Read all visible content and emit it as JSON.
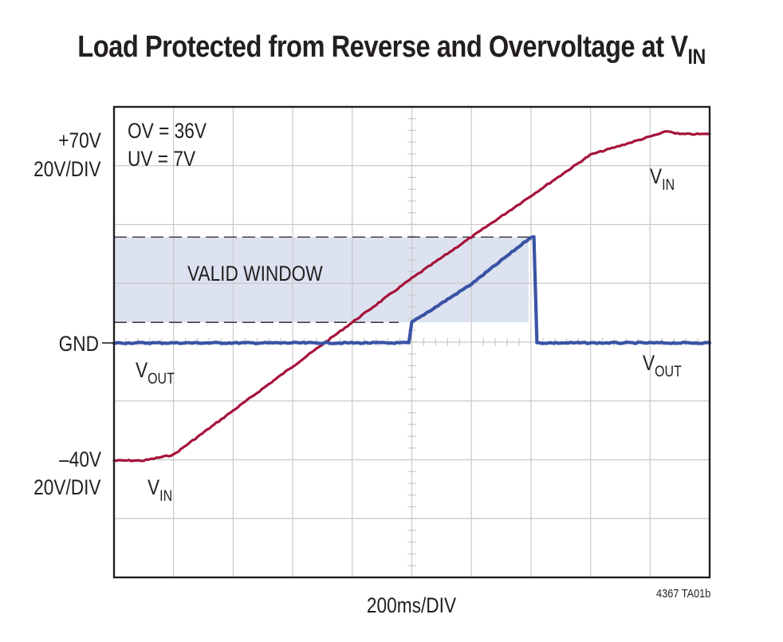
{
  "title": {
    "main": "Load Protected from Reverse and Overvoltage at V",
    "sub": "IN"
  },
  "colors": {
    "vin": "#a6123a",
    "vout": "#3a53a4",
    "window_fill": "#dde2f0",
    "grid": "#c9c9c9",
    "frame": "#231f20"
  },
  "chart_data": {
    "type": "line",
    "title": "Load Protected from Reverse and Overvoltage at VIN",
    "xlabel": "200ms/DIV",
    "x_unit": "ms",
    "xlim": [
      0,
      2000
    ],
    "divisions": {
      "x": 10,
      "y": 8
    },
    "channels": [
      {
        "name": "VIN",
        "reference": "GND",
        "scale": "20V/DIV",
        "top_marker": "+70V",
        "bottom_marker": "-40V"
      },
      {
        "name": "VOUT",
        "reference": "GND",
        "scale": "20V/DIV"
      }
    ],
    "settings": {
      "ov": "OV = 36V",
      "uv": "UV = 7V"
    },
    "series": [
      {
        "name": "VIN",
        "points": [
          [
            0,
            -40
          ],
          [
            100,
            -40
          ],
          [
            200,
            -38
          ],
          [
            600,
            -8
          ],
          [
            800,
            7
          ],
          [
            1000,
            22
          ],
          [
            1200,
            36
          ],
          [
            1400,
            50
          ],
          [
            1600,
            64
          ],
          [
            1860,
            72
          ],
          [
            1900,
            71
          ],
          [
            2000,
            71
          ]
        ]
      },
      {
        "name": "VOUT",
        "points": [
          [
            0,
            0
          ],
          [
            990,
            0
          ],
          [
            1000,
            7
          ],
          [
            1200,
            20
          ],
          [
            1400,
            36
          ],
          [
            1410,
            36
          ],
          [
            1420,
            0
          ],
          [
            2000,
            0
          ]
        ]
      }
    ],
    "annotations": [
      {
        "text": "VALID WINDOW",
        "from": 7,
        "to": 36
      }
    ]
  },
  "labels": {
    "plus70": "+70V",
    "div_top": "20V/DIV",
    "gnd": "GND",
    "minus40": "–40V",
    "div_bottom": "20V/DIV",
    "ov": "OV = 36V",
    "uv": "UV = 7V",
    "valid_window": "VALID WINDOW",
    "v": "V",
    "vin_sub": "IN",
    "vout_sub": "OUT",
    "xlabel": "200ms/DIV",
    "fig_code": "4367 TA01b"
  }
}
